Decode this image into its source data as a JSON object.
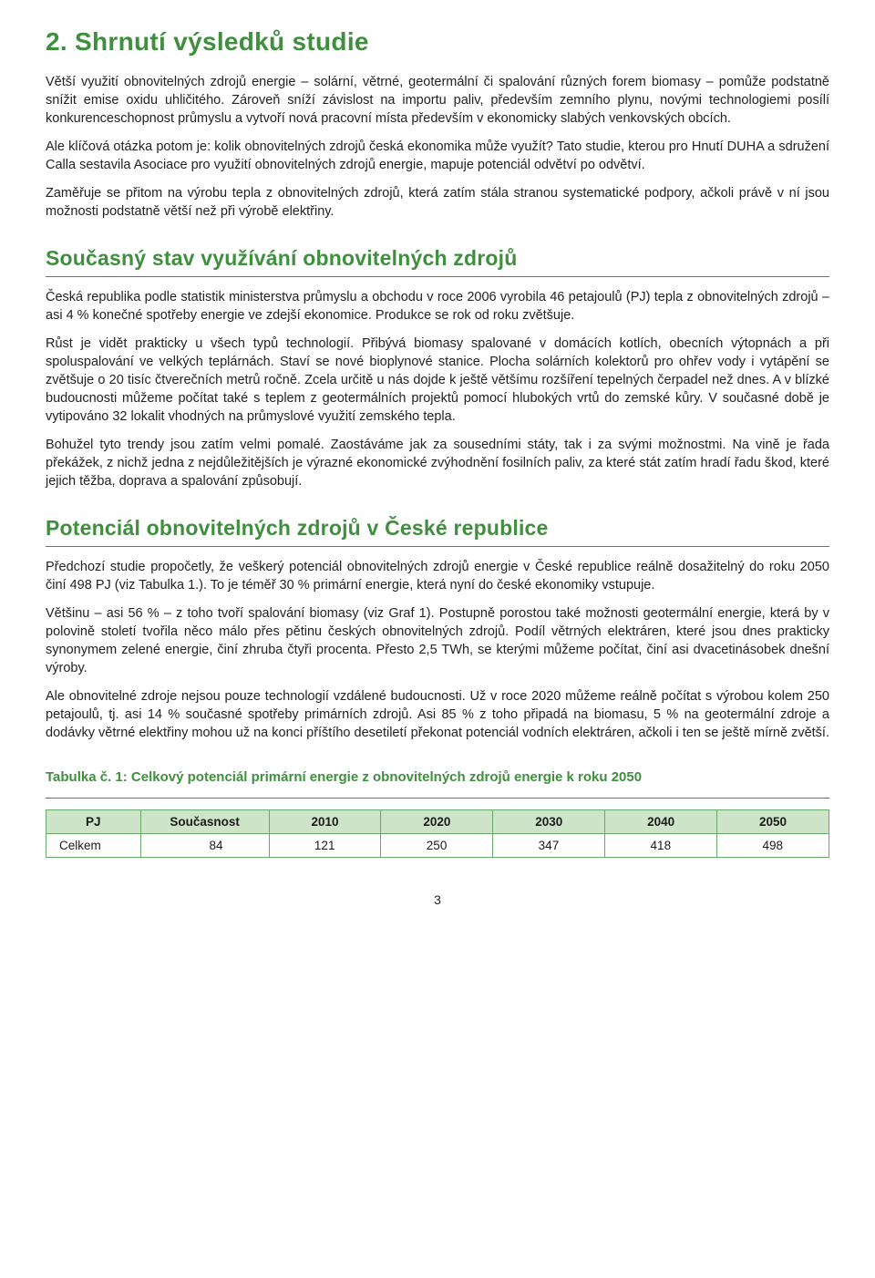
{
  "colors": {
    "heading_green": "#3f8f3f",
    "table_header_bg": "#cde4c8",
    "table_border": "#6aa86a",
    "body_text": "#222222",
    "background": "#ffffff"
  },
  "typography": {
    "h1_size_pt": 21,
    "h2_size_pt": 17,
    "h3_size_pt": 11,
    "body_size_pt": 11,
    "font_family": "Arial"
  },
  "headings": {
    "h1": "2. Shrnutí výsledků studie",
    "h2a": "Současný stav využívání obnovitelných zdrojů",
    "h2b": "Potenciál obnovitelných zdrojů v České republice",
    "table_caption": "Tabulka č. 1: Celkový potenciál primární energie z obnovitelných zdrojů energie k roku 2050"
  },
  "paragraphs": {
    "p1": "Větší využití obnovitelných zdrojů energie – solární, větrné, geotermální či spalování různých forem biomasy – pomůže podstatně snížit emise oxidu uhličitého. Zároveň sníží závislost na importu paliv, především zemního plynu, novými technologiemi posílí konkurenceschopnost průmyslu a vytvoří nová pracovní místa především v ekonomicky slabých venkovských obcích.",
    "p2": "Ale klíčová otázka potom je: kolik obnovitelných zdrojů česká ekonomika může využít? Tato studie, kterou pro Hnutí DUHA a sdružení Calla sestavila Asociace pro využití obnovitelných zdrojů energie, mapuje potenciál odvětví po odvětví.",
    "p3": "Zaměřuje se přitom na výrobu tepla z obnovitelných zdrojů, která zatím stála stranou systematické podpory, ačkoli právě v ní jsou možnosti podstatně větší než při výrobě elektřiny.",
    "p4": "Česká republika podle statistik ministerstva průmyslu a obchodu v roce 2006 vyrobila 46 petajoulů (PJ) tepla z obnovitelných zdrojů – asi 4 % konečné spotřeby energie ve zdejší ekonomice. Produkce se rok od roku zvětšuje.",
    "p5": "Růst je vidět prakticky u všech typů technologií. Přibývá biomasy spalované v domácích kotlích, obecních výtopnách a při spoluspalování ve velkých teplárnách. Staví se nové bioplynové stanice. Plocha solárních kolektorů pro ohřev vody i vytápění se zvětšuje o 20 tisíc čtverečních metrů ročně. Zcela určitě u nás dojde k ještě většímu rozšíření tepelných čerpadel než dnes. A v blízké budoucnosti můžeme počítat také s teplem z geotermálních projektů pomocí hlubokých vrtů do zemské kůry. V současné době je vytipováno 32 lokalit vhodných na průmyslové využití zemského tepla.",
    "p6": "Bohužel tyto trendy jsou zatím velmi pomalé. Zaostáváme jak za sousedními státy, tak i za svými možnostmi. Na vině je řada překážek, z nichž jedna z nejdůležitějších je výrazné ekonomické zvýhodnění fosilních paliv, za které stát zatím hradí řadu škod, které jejich těžba, doprava a spalování způsobují.",
    "p7": "Předchozí studie propočetly, že veškerý potenciál obnovitelných zdrojů energie v České republice reálně dosažitelný do roku 2050 činí 498 PJ (viz Tabulka 1.). To je téměř 30 % primární energie, která nyní do české ekonomiky vstupuje.",
    "p8": "Většinu – asi 56 % – z toho tvoří spalování biomasy (viz Graf 1). Postupně porostou také možnosti geotermální energie, která by v polovině století tvořila něco málo přes pětinu českých obnovitelných zdrojů. Podíl větrných elektráren, které jsou dnes prakticky synonymem zelené energie, činí zhruba čtyři procenta. Přesto 2,5 TWh, se kterými můžeme počítat, činí asi dvacetinásobek dnešní výroby.",
    "p9": "Ale obnovitelné zdroje nejsou pouze technologií vzdálené budoucnosti. Už v roce 2020 můžeme reálně počítat s výrobou kolem 250 petajoulů, tj. asi 14 % současné spotřeby primárních zdrojů. Asi 85 % z toho připadá na biomasu, 5 % na geotermální zdroje a dodávky větrné elektřiny mohou už na konci příštího desetiletí překonat potenciál vodních elektráren, ačkoli i ten se ještě mírně zvětší."
  },
  "table": {
    "type": "table",
    "columns": [
      "PJ",
      "Současnost",
      "2010",
      "2020",
      "2030",
      "2040",
      "2050"
    ],
    "rows": [
      [
        "Celkem",
        "84",
        "121",
        "250",
        "347",
        "418",
        "498"
      ]
    ],
    "header_bg": "#cde4c8",
    "border_color": "#6aa86a",
    "col_widths_pct": [
      14,
      15,
      14,
      14,
      14,
      14,
      15
    ]
  },
  "page_number": "3"
}
